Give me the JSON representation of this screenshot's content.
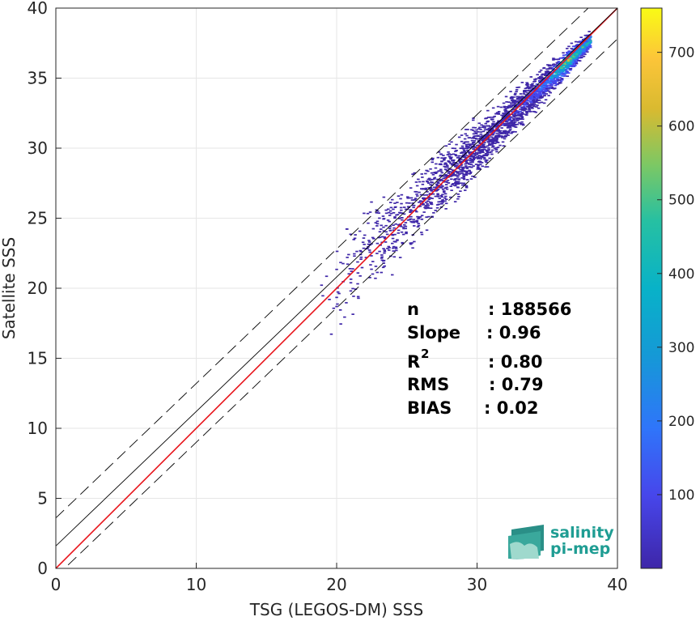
{
  "chart_data": {
    "type": "heatmap",
    "xlabel": "TSG (LEGOS-DM) SSS",
    "ylabel": "Satellite SSS",
    "xlim": [
      0,
      40
    ],
    "ylim": [
      0,
      40
    ],
    "x_ticks": [
      0,
      10,
      20,
      30,
      40
    ],
    "y_ticks": [
      0,
      5,
      10,
      15,
      20,
      25,
      30,
      35,
      40
    ],
    "grid": true,
    "colorbar": {
      "range": [
        0,
        760
      ],
      "ticks": [
        100,
        200,
        300,
        400,
        500,
        600,
        700
      ],
      "colormap": "parula"
    },
    "density_cluster": {
      "description_points": [
        {
          "x": 19.0,
          "y": 23.0,
          "density": 5
        },
        {
          "x": 22.0,
          "y": 22.5,
          "density": 10
        },
        {
          "x": 25.0,
          "y": 25.5,
          "density": 20
        },
        {
          "x": 27.0,
          "y": 27.0,
          "density": 30
        },
        {
          "x": 29.0,
          "y": 29.0,
          "density": 50
        },
        {
          "x": 31.0,
          "y": 31.0,
          "density": 80
        },
        {
          "x": 33.0,
          "y": 33.0,
          "density": 120
        },
        {
          "x": 35.0,
          "y": 35.0,
          "density": 250
        },
        {
          "x": 36.3,
          "y": 36.3,
          "density": 700
        },
        {
          "x": 37.0,
          "y": 37.2,
          "density": 500
        }
      ]
    },
    "lines": [
      {
        "name": "one-to-one",
        "color": "#e8141b",
        "style": "solid",
        "slope": 1.0,
        "intercept": 0.0
      },
      {
        "name": "regression",
        "color": "#000000",
        "style": "solid",
        "slope": 0.96,
        "intercept": 1.6
      },
      {
        "name": "upper-band",
        "color": "#000000",
        "style": "dashed",
        "slope": 0.96,
        "intercept": 3.6
      },
      {
        "name": "lower-band",
        "color": "#000000",
        "style": "dashed",
        "slope": 0.96,
        "intercept": -0.6
      }
    ],
    "stats": {
      "n_label": "n",
      "n_value": ": 188566",
      "slope_label": "Slope",
      "slope_value": ": 0.96",
      "r2_label": "R",
      "r2_sup": "2",
      "r2_value": ": 0.80",
      "rms_label": "RMS",
      "rms_value": ": 0.79",
      "bias_label": "BIAS",
      "bias_value": ": 0.02"
    },
    "logo": {
      "line1": "salinity",
      "line2": "pi-mep"
    }
  }
}
